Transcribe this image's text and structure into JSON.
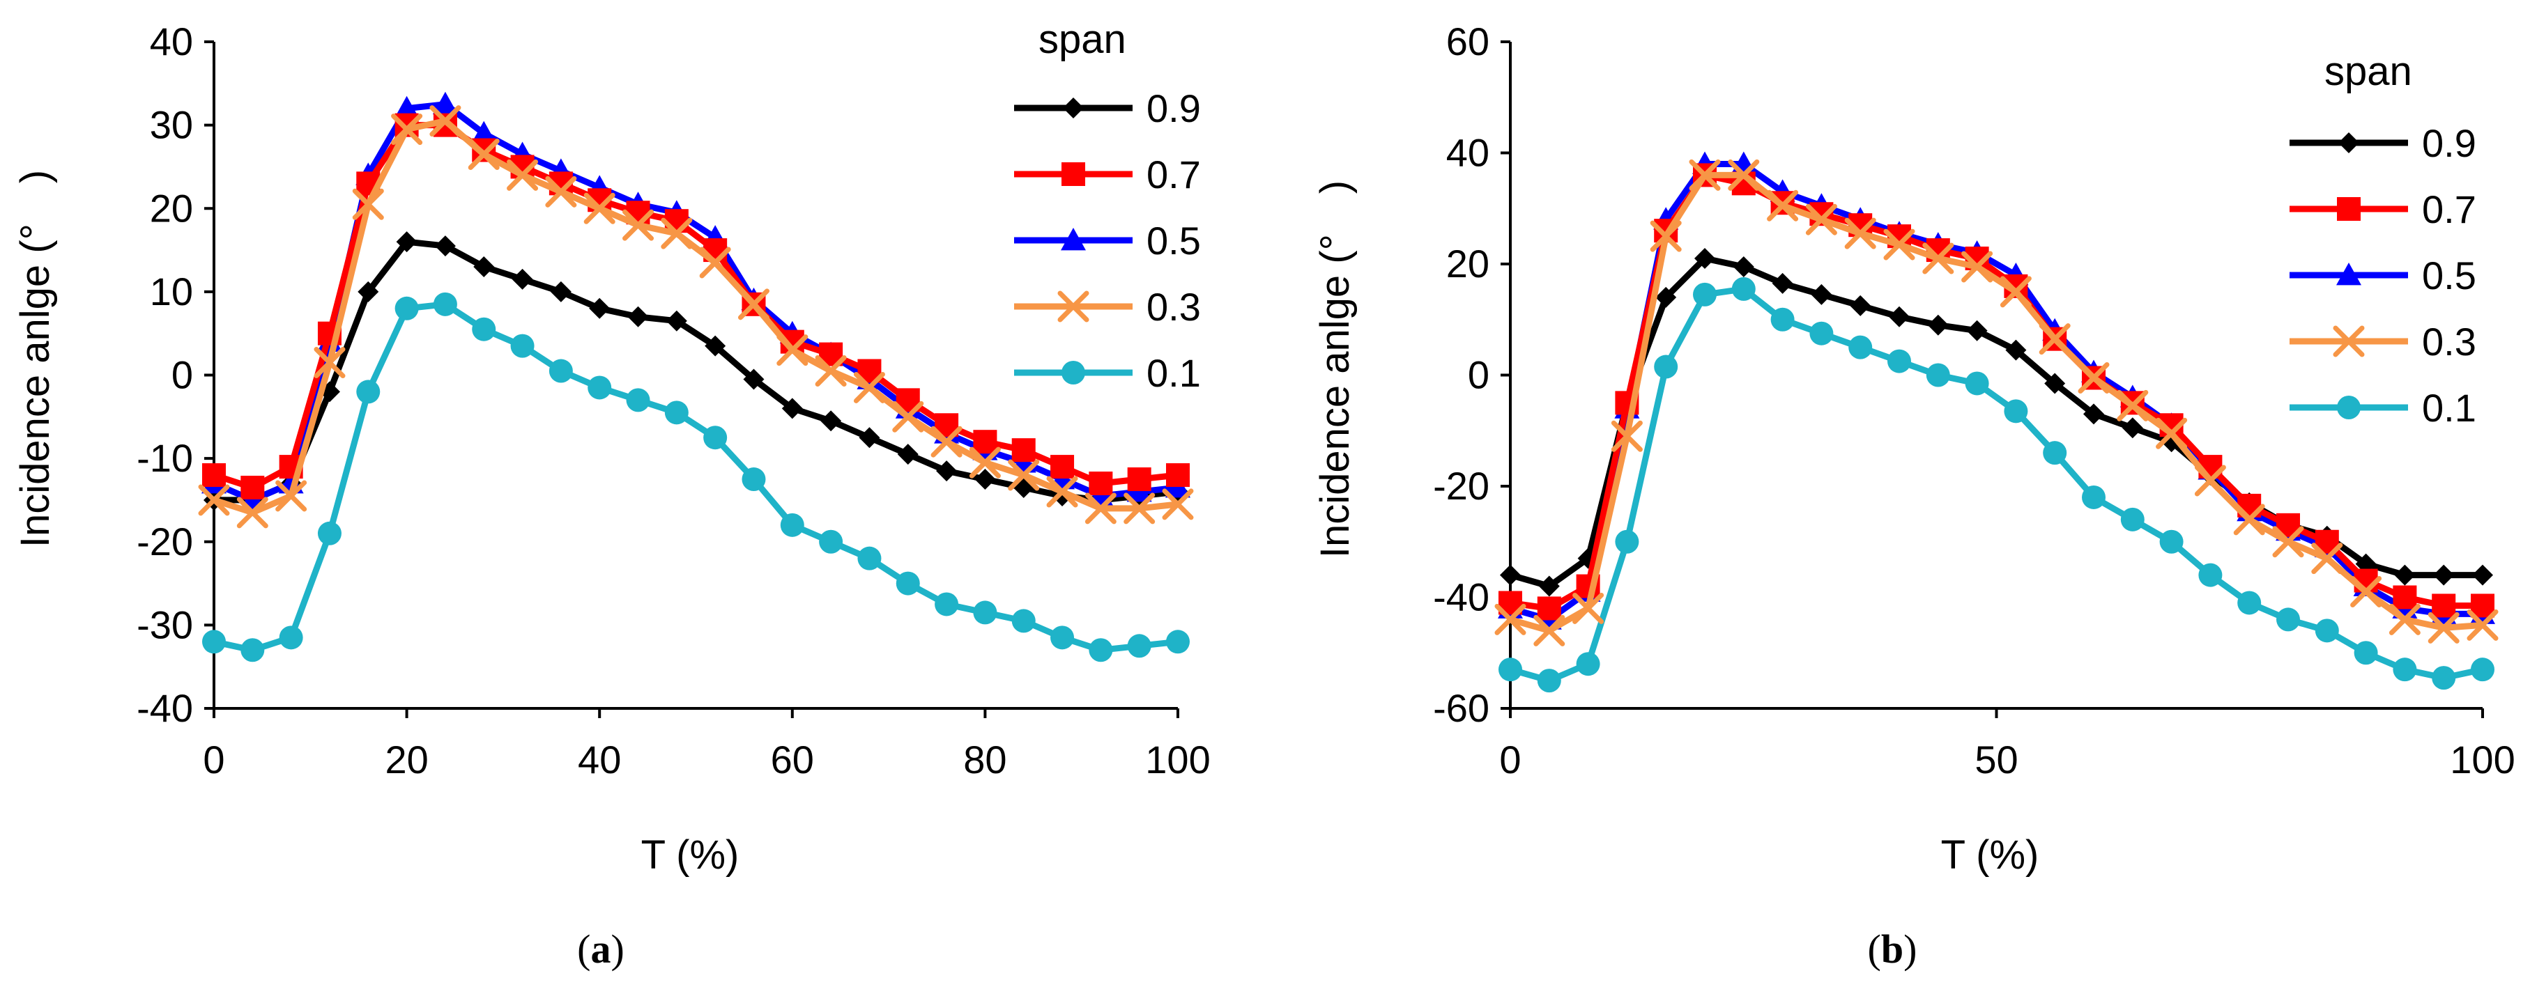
{
  "colors": {
    "0.9": "#000000",
    "0.7": "#ff0000",
    "0.5": "#0000ff",
    "0.3": "#f79646",
    "0.1": "#1fb3c8"
  },
  "chart_data": [
    {
      "type": "line",
      "panel": "(a)",
      "caption_open": "(",
      "caption_letter": "a",
      "caption_close": ")",
      "xlabel": "T (%)",
      "ylabel": "Incidence anlge (° )",
      "xlim": [
        0,
        100
      ],
      "ylim": [
        -40,
        40
      ],
      "xticks": [
        0,
        20,
        40,
        60,
        80,
        100
      ],
      "yticks": [
        -40,
        -30,
        -20,
        -10,
        0,
        10,
        20,
        30,
        40
      ],
      "legend_title": "span",
      "legend_position": "top-right",
      "x": [
        0,
        4,
        8,
        12,
        16,
        20,
        24,
        28,
        32,
        36,
        40,
        44,
        48,
        52,
        56,
        60,
        64,
        68,
        72,
        76,
        80,
        84,
        88,
        92,
        96,
        100
      ],
      "series": [
        {
          "name": "0.9",
          "marker": "diamond",
          "values": [
            -15,
            -15,
            -13,
            -2,
            10,
            16,
            15.5,
            13,
            11.5,
            10,
            8,
            7,
            6.5,
            3.5,
            -0.5,
            -4,
            -5.5,
            -7.5,
            -9.5,
            -11.5,
            -12.5,
            -13.5,
            -14.5,
            -15,
            -14.5,
            -14
          ]
        },
        {
          "name": "0.7",
          "marker": "square",
          "values": [
            -12,
            -13.5,
            -11,
            5,
            23,
            30,
            30,
            27,
            25,
            23,
            21,
            19.5,
            18.5,
            15,
            8.5,
            4,
            2.5,
            0.5,
            -3,
            -6,
            -8,
            -9,
            -11,
            -13,
            -12.5,
            -12
          ]
        },
        {
          "name": "0.5",
          "marker": "triangle",
          "values": [
            -13,
            -15,
            -13,
            4,
            24,
            32,
            32.5,
            29,
            26.5,
            24.5,
            22.5,
            20.5,
            19.5,
            16.5,
            9,
            5,
            2.5,
            -0.5,
            -4,
            -7,
            -9,
            -10.5,
            -12.5,
            -14.5,
            -14,
            -13.5
          ]
        },
        {
          "name": "0.3",
          "marker": "x",
          "values": [
            -15,
            -16.5,
            -14.5,
            1.5,
            20.5,
            29.5,
            30.5,
            26.5,
            24,
            22,
            20,
            18,
            17,
            13.5,
            8.5,
            3,
            0.5,
            -1.5,
            -5,
            -8,
            -10.5,
            -12,
            -14,
            -16,
            -16,
            -15.5
          ]
        },
        {
          "name": "0.1",
          "marker": "circle",
          "values": [
            -32,
            -33,
            -31.5,
            -19,
            -2,
            8,
            8.5,
            5.5,
            3.5,
            0.5,
            -1.5,
            -3,
            -4.5,
            -7.5,
            -12.5,
            -18,
            -20,
            -22,
            -25,
            -27.5,
            -28.5,
            -29.5,
            -31.5,
            -33,
            -32.5,
            -32
          ]
        }
      ]
    },
    {
      "type": "line",
      "panel": "(b)",
      "caption_open": "(",
      "caption_letter": "b",
      "caption_close": ")",
      "xlabel": "T (%)",
      "ylabel": "Incidence anlge (° )",
      "xlim": [
        0,
        100
      ],
      "ylim": [
        -60,
        60
      ],
      "xticks": [
        0,
        50,
        100
      ],
      "yticks": [
        -60,
        -40,
        -20,
        0,
        20,
        40,
        60
      ],
      "legend_title": "span",
      "legend_position": "top-right",
      "x": [
        0,
        4,
        8,
        12,
        16,
        20,
        24,
        28,
        32,
        36,
        40,
        44,
        48,
        52,
        56,
        60,
        64,
        68,
        72,
        76,
        80,
        84,
        88,
        92,
        96,
        100
      ],
      "series": [
        {
          "name": "0.9",
          "marker": "diamond",
          "values": [
            -36,
            -38,
            -33,
            -5,
            14,
            21,
            19.5,
            16.5,
            14.5,
            12.5,
            10.5,
            9,
            8,
            4.5,
            -1.5,
            -7,
            -9.5,
            -12,
            -18,
            -23,
            -27,
            -29,
            -34,
            -36,
            -36,
            -36
          ]
        },
        {
          "name": "0.7",
          "marker": "square",
          "values": [
            -41,
            -42,
            -38,
            -5,
            26,
            36,
            34.5,
            31,
            29,
            27,
            25,
            22.5,
            21,
            16,
            6.5,
            -0.5,
            -5,
            -9,
            -16.5,
            -23.5,
            -27,
            -30,
            -37,
            -40,
            -41.5,
            -41.5
          ]
        },
        {
          "name": "0.5",
          "marker": "triangle",
          "values": [
            -42,
            -44,
            -39,
            -6,
            28,
            38,
            38,
            33,
            30.5,
            28,
            25.5,
            23.5,
            22,
            18,
            8,
            0.5,
            -4,
            -9,
            -17,
            -24.5,
            -28,
            -31,
            -38,
            -42,
            -43,
            -43
          ]
        },
        {
          "name": "0.3",
          "marker": "x",
          "values": [
            -44,
            -46,
            -42,
            -11,
            25,
            36,
            36,
            30.5,
            28,
            25.5,
            23.5,
            21,
            19.5,
            15,
            6.5,
            -0.5,
            -5.5,
            -10.5,
            -19,
            -26,
            -30,
            -33,
            -39,
            -44,
            -45.5,
            -45
          ]
        },
        {
          "name": "0.1",
          "marker": "circle",
          "values": [
            -53,
            -55,
            -52,
            -30,
            1.5,
            14.5,
            15.5,
            10,
            7.5,
            5,
            2.5,
            0,
            -1.5,
            -6.5,
            -14,
            -22,
            -26,
            -30,
            -36,
            -41,
            -44,
            -46,
            -50,
            -53,
            -54.5,
            -53
          ]
        }
      ]
    }
  ]
}
